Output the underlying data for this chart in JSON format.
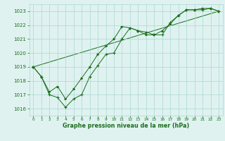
{
  "line1_x": [
    0,
    1,
    2,
    3,
    4,
    5,
    6,
    7,
    8,
    9,
    10,
    11,
    12,
    13,
    14,
    15,
    16,
    17,
    18,
    19,
    20,
    21,
    22,
    23
  ],
  "line1_y": [
    1019.0,
    1018.3,
    1017.0,
    1016.8,
    1016.1,
    1016.7,
    1017.0,
    1018.3,
    1019.1,
    1019.9,
    1020.0,
    1021.0,
    1021.8,
    1021.6,
    1021.5,
    1021.3,
    1021.3,
    1022.2,
    1022.7,
    1023.1,
    1023.1,
    1023.1,
    1023.2,
    1023.0
  ],
  "line2_x": [
    0,
    1,
    2,
    3,
    4,
    5,
    6,
    7,
    8,
    9,
    10,
    11,
    12,
    13,
    14,
    15,
    16,
    17,
    18,
    19,
    20,
    21,
    22,
    23
  ],
  "line2_y": [
    1019.0,
    1018.3,
    1017.2,
    1017.6,
    1016.7,
    1017.4,
    1018.2,
    1019.0,
    1019.9,
    1020.5,
    1021.0,
    1021.9,
    1021.8,
    1021.6,
    1021.3,
    1021.3,
    1021.6,
    1022.1,
    1022.7,
    1023.1,
    1023.1,
    1023.2,
    1023.2,
    1023.0
  ],
  "line3_x": [
    0,
    23
  ],
  "line3_y": [
    1019.0,
    1023.0
  ],
  "line_color": "#1a6e1a",
  "bg_color": "#dff2f0",
  "grid_color": "#a8d8d4",
  "xlabel": "Graphe pression niveau de la mer (hPa)",
  "ylim": [
    1015.5,
    1023.5
  ],
  "xlim": [
    -0.5,
    23.5
  ],
  "yticks": [
    1016,
    1017,
    1018,
    1019,
    1020,
    1021,
    1022,
    1023
  ],
  "xticks": [
    0,
    1,
    2,
    3,
    4,
    5,
    6,
    7,
    8,
    9,
    10,
    11,
    12,
    13,
    14,
    15,
    16,
    17,
    18,
    19,
    20,
    21,
    22,
    23
  ]
}
